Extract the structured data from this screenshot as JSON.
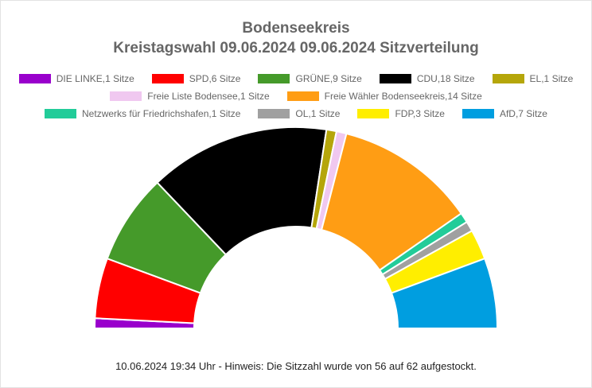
{
  "chart_data": {
    "type": "pie",
    "subtype": "parliament-semicircle",
    "title": "Bodenseekreis",
    "subtitle": "Kreistagswahl 09.06.2024 09.06.2024 Sitzverteilung",
    "total_seats": 62,
    "series": [
      {
        "name": "DIE LINKE",
        "seats": 1,
        "label": "DIE LINKE,1 Sitze",
        "color": "#9900cc"
      },
      {
        "name": "SPD",
        "seats": 6,
        "label": "SPD,6 Sitze",
        "color": "#ff0000"
      },
      {
        "name": "GRÜNE",
        "seats": 9,
        "label": "GRÜNE,9 Sitze",
        "color": "#459a2a"
      },
      {
        "name": "CDU",
        "seats": 18,
        "label": "CDU,18 Sitze",
        "color": "#000000"
      },
      {
        "name": "EL",
        "seats": 1,
        "label": "EL,1 Sitze",
        "color": "#b5a60a"
      },
      {
        "name": "Freie Liste Bodensee",
        "seats": 1,
        "label": "Freie Liste Bodensee,1 Sitze",
        "color": "#f0c8f0"
      },
      {
        "name": "Freie Wähler Bodenseekreis",
        "seats": 14,
        "label": "Freie Wähler Bodenseekreis,14 Sitze",
        "color": "#ff9d14"
      },
      {
        "name": "Netzwerks für Friedrichshafen",
        "seats": 1,
        "label": "Netzwerks für Friedrichshafen,1 Sitze",
        "color": "#22cc99"
      },
      {
        "name": "OL",
        "seats": 1,
        "label": "OL,1 Sitze",
        "color": "#a0a0a0"
      },
      {
        "name": "FDP",
        "seats": 3,
        "label": "FDP,3 Sitze",
        "color": "#ffee00"
      },
      {
        "name": "AfD",
        "seats": 7,
        "label": "AfD,7 Sitze",
        "color": "#009ee0"
      }
    ],
    "legend_placement": "top",
    "footer": "10.06.2024 19:34 Uhr - Hinweis: Die Sitzzahl wurde von 56 auf 62 aufgestockt."
  }
}
